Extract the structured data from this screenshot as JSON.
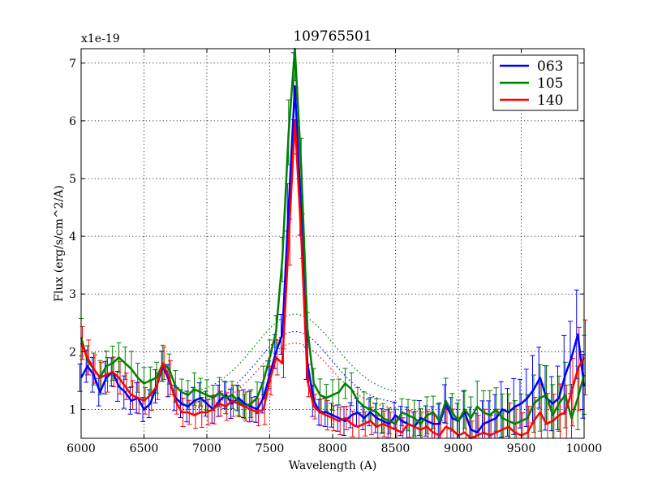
{
  "chart_data": {
    "type": "line",
    "title": "109765501",
    "xlabel": "Wavelength (A)",
    "ylabel": "Flux (erg/s/cm^2/A)",
    "offset_text": "x1e-19",
    "xlim": [
      6000,
      10000
    ],
    "ylim": [
      0.5,
      7.25
    ],
    "xticks": [
      6000,
      6500,
      7000,
      7500,
      8000,
      8500,
      9000,
      9500,
      10000
    ],
    "yticks": [
      1,
      2,
      3,
      4,
      5,
      6,
      7
    ],
    "grid": true,
    "legend_position": "top-right",
    "x": [
      6000,
      6050,
      6100,
      6150,
      6200,
      6250,
      6300,
      6350,
      6400,
      6450,
      6500,
      6550,
      6600,
      6650,
      6700,
      6750,
      6800,
      6850,
      6900,
      6950,
      7000,
      7050,
      7100,
      7150,
      7200,
      7250,
      7300,
      7350,
      7400,
      7450,
      7500,
      7550,
      7600,
      7650,
      7700,
      7750,
      7800,
      7850,
      7900,
      7950,
      8000,
      8050,
      8100,
      8150,
      8200,
      8250,
      8300,
      8350,
      8400,
      8450,
      8500,
      8550,
      8600,
      8650,
      8700,
      8750,
      8800,
      8850,
      8900,
      8950,
      9000,
      9050,
      9100,
      9150,
      9200,
      9250,
      9300,
      9350,
      9400,
      9450,
      9500,
      9550,
      9600,
      9650,
      9700,
      9750,
      9800,
      9850,
      9900,
      9950,
      10000
    ],
    "series": [
      {
        "name": "063",
        "color": "#0000ff",
        "values": [
          1.55,
          1.75,
          1.6,
          1.3,
          1.55,
          1.65,
          1.4,
          1.3,
          1.15,
          1.2,
          1.0,
          1.1,
          1.4,
          1.75,
          1.5,
          1.2,
          1.1,
          1.05,
          1.15,
          1.2,
          1.1,
          1.0,
          1.15,
          1.25,
          1.1,
          1.2,
          1.1,
          1.05,
          1.0,
          1.2,
          1.6,
          2.0,
          2.3,
          4.5,
          6.6,
          4.4,
          1.8,
          1.15,
          0.95,
          0.95,
          0.9,
          0.85,
          0.8,
          0.9,
          0.95,
          0.85,
          0.95,
          0.85,
          0.8,
          0.75,
          0.9,
          0.8,
          0.75,
          0.7,
          0.85,
          0.8,
          0.75,
          0.75,
          1.1,
          0.85,
          0.8,
          0.95,
          0.65,
          0.6,
          0.75,
          0.8,
          0.85,
          1.0,
          0.95,
          1.05,
          1.1,
          1.2,
          1.35,
          1.55,
          1.2,
          1.1,
          1.2,
          1.6,
          1.9,
          2.3,
          1.4
        ]
      },
      {
        "name": "105",
        "color": "#008000",
        "values": [
          2.25,
          1.85,
          1.7,
          1.55,
          1.75,
          1.8,
          1.9,
          1.8,
          1.7,
          1.55,
          1.45,
          1.5,
          1.55,
          1.8,
          1.7,
          1.4,
          1.3,
          1.25,
          1.35,
          1.3,
          1.25,
          1.2,
          1.3,
          1.2,
          1.25,
          1.15,
          1.05,
          1.1,
          1.2,
          1.5,
          1.9,
          2.35,
          3.6,
          5.8,
          7.25,
          5.2,
          2.4,
          1.45,
          1.25,
          1.2,
          1.25,
          1.3,
          1.45,
          1.35,
          1.15,
          1.05,
          1.0,
          0.95,
          0.85,
          0.8,
          0.75,
          0.95,
          0.9,
          0.85,
          0.75,
          0.9,
          0.95,
          0.8,
          1.15,
          0.95,
          0.8,
          1.0,
          0.85,
          1.05,
          0.95,
          0.9,
          1.0,
          0.85,
          0.8,
          0.75,
          0.8,
          0.85,
          1.1,
          1.2,
          1.25,
          0.9,
          1.1,
          1.25,
          0.85,
          1.2,
          1.6
        ]
      },
      {
        "name": "140",
        "color": "#ff0000",
        "values": [
          2.15,
          1.9,
          1.7,
          1.55,
          1.6,
          1.65,
          1.55,
          1.4,
          1.25,
          1.2,
          1.15,
          1.25,
          1.4,
          1.8,
          1.55,
          1.15,
          0.95,
          0.95,
          0.9,
          0.95,
          0.95,
          1.0,
          1.1,
          1.05,
          1.15,
          1.1,
          1.05,
          1.0,
          0.95,
          1.0,
          1.5,
          1.9,
          1.8,
          3.9,
          6.0,
          4.0,
          1.5,
          1.05,
          0.95,
          0.9,
          0.85,
          0.8,
          0.85,
          0.75,
          0.7,
          0.75,
          0.8,
          0.7,
          0.75,
          0.7,
          0.65,
          0.6,
          0.75,
          0.7,
          0.65,
          0.7,
          0.6,
          0.55,
          0.7,
          0.65,
          0.55,
          0.6,
          0.5,
          0.55,
          0.6,
          0.55,
          0.6,
          0.65,
          0.7,
          0.6,
          0.55,
          0.6,
          0.8,
          0.95,
          0.75,
          0.8,
          0.9,
          0.95,
          1.3,
          1.7,
          1.9
        ]
      }
    ],
    "model_curves": [
      {
        "name": "green-dotted-model",
        "color": "#008000",
        "baseline": 1.25,
        "amplitude": 1.4,
        "center": 7700,
        "sigma": 320
      },
      {
        "name": "blue-dotted-model",
        "color": "#0000ff",
        "baseline": 1.1,
        "amplitude": 1.25,
        "center": 7700,
        "sigma": 290
      },
      {
        "name": "red-dotted-model",
        "color": "#ff0000",
        "baseline": 1.0,
        "amplitude": 1.15,
        "center": 7700,
        "sigma": 290
      }
    ]
  }
}
